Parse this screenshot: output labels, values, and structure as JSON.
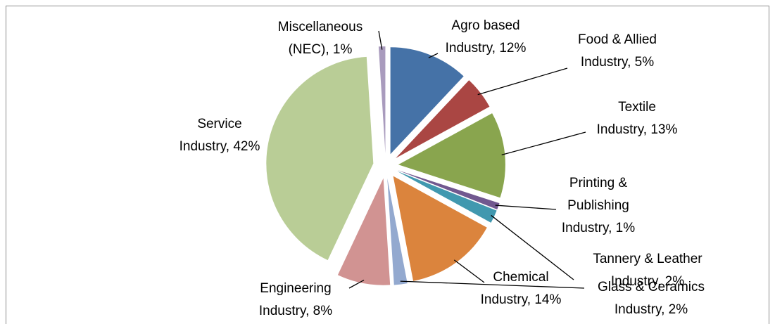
{
  "chart_data": {
    "type": "pie",
    "categories": [
      "Agro based Industry",
      "Food & Allied Industry",
      "Textile Industry",
      "Printing & Publishing Industry",
      "Tannery & Leather Industry",
      "Chemical Industry",
      "Glass & Ceramics Industry",
      "Engineering Industry",
      "Service Industry",
      "Miscellaneous (NEC)"
    ],
    "values": [
      12,
      5,
      13,
      1,
      2,
      14,
      2,
      8,
      42,
      1
    ],
    "value_labels": [
      "Agro based Industry, 12%",
      "Food & Allied Industry, 5%",
      "Textile Industry, 13%",
      "Printing & Publishing Industry, 1%",
      "Tannery & Leather Industry, 2%",
      "Chemical Industry, 14%",
      "Glass & Ceramics Industry, 2%",
      "Engineering Industry, 8%",
      "Service Industry, 42%",
      "Miscellaneous (NEC), 1%"
    ],
    "colors": [
      "#4572a7",
      "#aa4643",
      "#89a54e",
      "#71588f",
      "#4198af",
      "#db843d",
      "#93a9cf",
      "#d19392",
      "#b9cd96",
      "#a99bbd"
    ],
    "exploded": true
  }
}
